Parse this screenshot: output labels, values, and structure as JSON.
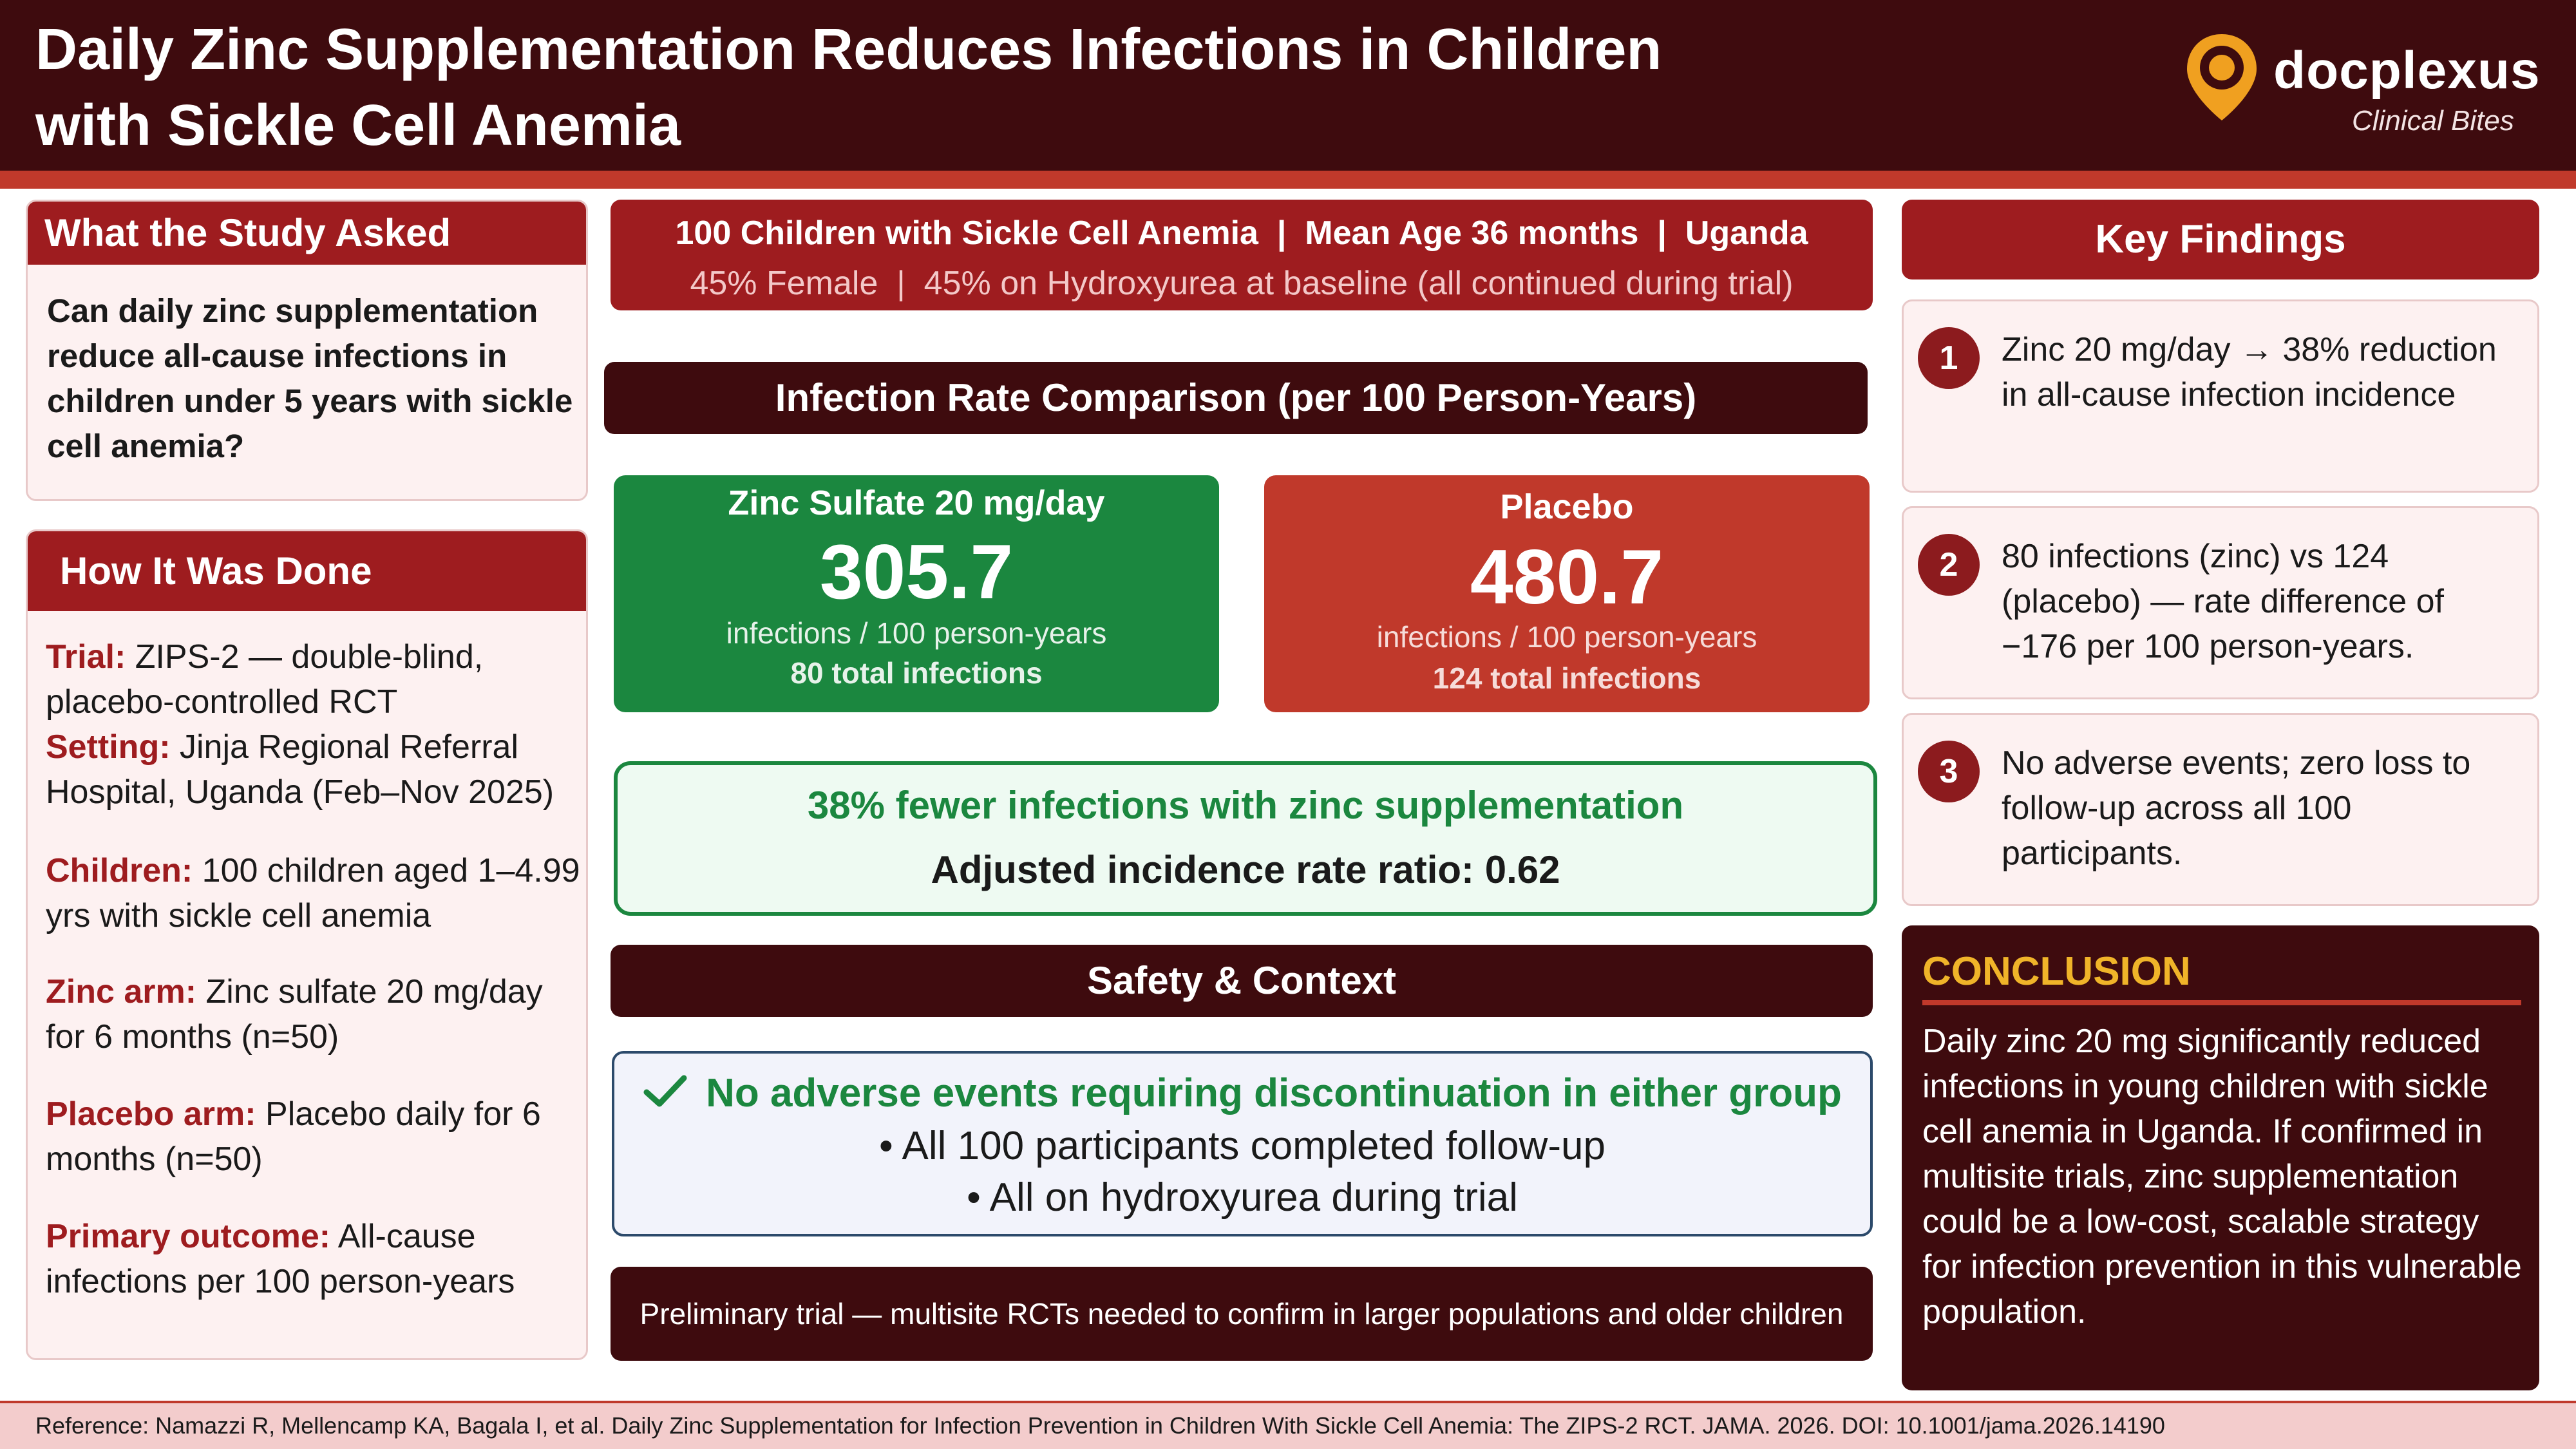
{
  "header": {
    "title": "Daily Zinc Supplementation Reduces Infections in Children with Sickle Cell Anemia",
    "logo_name": "docplexus",
    "logo_tagline": "Clinical Bites",
    "colors": {
      "header_bg": "#3e0b0e",
      "accent": "#c0392b",
      "logo_orange": "#f0a020"
    }
  },
  "study_question": {
    "heading": "What the Study Asked",
    "text": "Can daily zinc supplementation reduce all-cause infections in children under 5 years with sickle cell anemia?"
  },
  "methods": {
    "heading": "How It Was Done",
    "items": [
      {
        "key": "Trial:",
        "text": " ZIPS-2 — double-blind, placebo-controlled RCT"
      },
      {
        "key": "Setting:",
        "text": " Jinja Regional Referral Hospital, Uganda (Feb–Nov 2025)"
      },
      {
        "key": "Children:",
        "text": " 100 children aged 1–4.99 yrs with sickle cell anemia"
      },
      {
        "key": "Zinc arm:",
        "text": " Zinc sulfate 20 mg/day for 6 months (n=50)"
      },
      {
        "key": "Placebo arm:",
        "text": " Placebo daily for 6 months (n=50)"
      },
      {
        "key": "Primary outcome:",
        "text": " All-cause infections per 100 person-years"
      }
    ]
  },
  "population": {
    "line1": "100 Children with Sickle Cell Anemia  |  Mean Age 36 months  |  Uganda",
    "line2": "45% Female  |  45% on Hydroxyurea at baseline (all continued during trial)"
  },
  "rates": {
    "heading": "Infection Rate Comparison (per 100 Person-Years)",
    "zinc": {
      "label": "Zinc Sulfate 20 mg/day",
      "value": "305.7",
      "unit": "infections / 100 person-years",
      "total": "80 total infections",
      "color": "#1b873f"
    },
    "placebo": {
      "label": "Placebo",
      "value": "480.7",
      "unit": "infections / 100 person-years",
      "total": "124 total infections",
      "color": "#c0392b"
    }
  },
  "irr": {
    "headline": "38% fewer infections with zinc supplementation",
    "ratio": "Adjusted incidence rate ratio: 0.62"
  },
  "safety": {
    "heading": "Safety & Context",
    "headline": "No adverse events requiring discontinuation in either group",
    "icon": "check-icon",
    "bullets": [
      "•  All 100 participants completed follow-up",
      "•  All on hydroxyurea during trial"
    ],
    "note": "Preliminary trial — multisite RCTs needed to confirm in larger populations and older children"
  },
  "key_findings": {
    "heading": "Key Findings",
    "items": [
      {
        "num": "1",
        "text": "Zinc 20 mg/day → 38% reduction in all-cause infection incidence"
      },
      {
        "num": "2",
        "text": "80 infections (zinc) vs 124 (placebo) — rate difference of −176 per 100 person-years."
      },
      {
        "num": "3",
        "text": "No adverse events; zero loss to follow-up across all 100 participants."
      }
    ]
  },
  "conclusion": {
    "heading": "CONCLUSION",
    "text": "Daily zinc 20 mg significantly reduced infections in young children with sickle cell anemia in Uganda. If confirmed in multisite trials, zinc supplementation could be a low-cost, scalable strategy for infection prevention in this vulnerable population."
  },
  "footer": {
    "reference": "Reference: Namazzi R, Mellencamp KA, Bagala I, et al. Daily Zinc Supplementation for Infection Prevention in Children With Sickle Cell Anemia: The ZIPS-2 RCT. JAMA. 2026. DOI: 10.1001/jama.2026.14190"
  }
}
